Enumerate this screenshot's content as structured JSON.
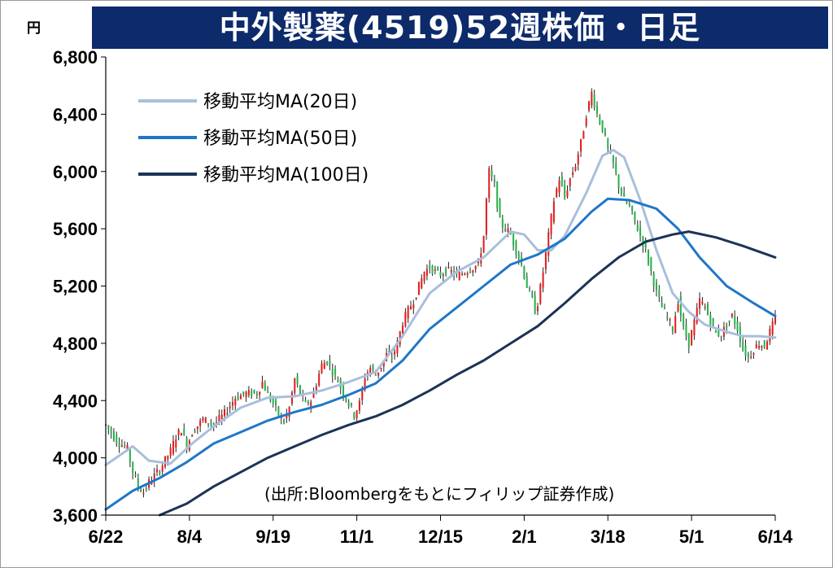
{
  "header": {
    "title": "中外製薬(4519)52週株価・日足",
    "unit": "円"
  },
  "source_note": "(出所:Bloombergをもとにフィリップ証券作成)",
  "colors": {
    "title_bg": "#0d2a6b",
    "up": "#e02020",
    "down": "#27b34a",
    "ma20": "#a9bfdc",
    "ma50": "#1f77c7",
    "ma100": "#1b3356"
  },
  "chart_data": {
    "type": "line",
    "title": "中外製薬(4519)52週株価・日足",
    "ylabel": "円",
    "ylim": [
      3600,
      6800
    ],
    "yticks": [
      "3,600",
      "4,000",
      "4,400",
      "4,800",
      "5,200",
      "5,600",
      "6,000",
      "6,400",
      "6,800"
    ],
    "ytick_values": [
      3600,
      4000,
      4400,
      4800,
      5200,
      5600,
      6000,
      6400,
      6800
    ],
    "xlim": [
      0,
      248
    ],
    "x_ticks": [
      {
        "label": "6/22",
        "x": 0
      },
      {
        "label": "8/4",
        "x": 31
      },
      {
        "label": "9/19",
        "x": 62
      },
      {
        "label": "11/1",
        "x": 93
      },
      {
        "label": "12/15",
        "x": 124
      },
      {
        "label": "2/1",
        "x": 155
      },
      {
        "label": "3/18",
        "x": 186
      },
      {
        "label": "5/1",
        "x": 217
      },
      {
        "label": "6/14",
        "x": 248
      }
    ],
    "legend": {
      "placement": "top-left",
      "entries": [
        {
          "label": "移動平均MA(20日)",
          "key": "ma20"
        },
        {
          "label": "移動平均MA(50日)",
          "key": "ma50"
        },
        {
          "label": "移動平均MA(100日)",
          "key": "ma100"
        }
      ]
    },
    "price_anchors": [
      [
        0,
        4230
      ],
      [
        4,
        4120
      ],
      [
        8,
        4060
      ],
      [
        10,
        3900
      ],
      [
        12,
        3800
      ],
      [
        14,
        3760
      ],
      [
        16,
        3830
      ],
      [
        20,
        3920
      ],
      [
        24,
        4050
      ],
      [
        26,
        4150
      ],
      [
        28,
        4200
      ],
      [
        30,
        4080
      ],
      [
        32,
        4180
      ],
      [
        36,
        4270
      ],
      [
        40,
        4230
      ],
      [
        44,
        4310
      ],
      [
        48,
        4420
      ],
      [
        52,
        4450
      ],
      [
        56,
        4450
      ],
      [
        58,
        4530
      ],
      [
        60,
        4440
      ],
      [
        62,
        4380
      ],
      [
        64,
        4300
      ],
      [
        66,
        4250
      ],
      [
        68,
        4350
      ],
      [
        70,
        4550
      ],
      [
        72,
        4450
      ],
      [
        74,
        4370
      ],
      [
        76,
        4400
      ],
      [
        78,
        4520
      ],
      [
        80,
        4650
      ],
      [
        82,
        4680
      ],
      [
        84,
        4600
      ],
      [
        86,
        4540
      ],
      [
        88,
        4450
      ],
      [
        90,
        4380
      ],
      [
        92,
        4300
      ],
      [
        94,
        4380
      ],
      [
        96,
        4570
      ],
      [
        98,
        4630
      ],
      [
        100,
        4580
      ],
      [
        102,
        4640
      ],
      [
        104,
        4720
      ],
      [
        106,
        4700
      ],
      [
        108,
        4800
      ],
      [
        110,
        4950
      ],
      [
        112,
        5030
      ],
      [
        114,
        5100
      ],
      [
        116,
        5200
      ],
      [
        118,
        5300
      ],
      [
        120,
        5330
      ],
      [
        122,
        5300
      ],
      [
        124,
        5280
      ],
      [
        126,
        5310
      ],
      [
        128,
        5300
      ],
      [
        130,
        5270
      ],
      [
        132,
        5290
      ],
      [
        134,
        5310
      ],
      [
        136,
        5330
      ],
      [
        138,
        5350
      ],
      [
        140,
        5550
      ],
      [
        141,
        5800
      ],
      [
        142,
        6000
      ],
      [
        144,
        5900
      ],
      [
        146,
        5650
      ],
      [
        148,
        5600
      ],
      [
        150,
        5560
      ],
      [
        152,
        5450
      ],
      [
        154,
        5350
      ],
      [
        156,
        5200
      ],
      [
        158,
        5100
      ],
      [
        159,
        5030
      ],
      [
        160,
        5080
      ],
      [
        162,
        5300
      ],
      [
        164,
        5550
      ],
      [
        166,
        5800
      ],
      [
        168,
        5950
      ],
      [
        170,
        5820
      ],
      [
        172,
        5950
      ],
      [
        174,
        6050
      ],
      [
        176,
        6200
      ],
      [
        178,
        6400
      ],
      [
        180,
        6550
      ],
      [
        182,
        6400
      ],
      [
        184,
        6300
      ],
      [
        186,
        6150
      ],
      [
        188,
        6050
      ],
      [
        190,
        5900
      ],
      [
        192,
        5800
      ],
      [
        194,
        5750
      ],
      [
        196,
        5650
      ],
      [
        198,
        5550
      ],
      [
        200,
        5450
      ],
      [
        202,
        5300
      ],
      [
        204,
        5150
      ],
      [
        206,
        5050
      ],
      [
        208,
        4980
      ],
      [
        210,
        4900
      ],
      [
        212,
        5100
      ],
      [
        214,
        4900
      ],
      [
        216,
        4800
      ],
      [
        218,
        4950
      ],
      [
        220,
        5100
      ],
      [
        222,
        5050
      ],
      [
        224,
        4950
      ],
      [
        226,
        4870
      ],
      [
        228,
        4860
      ],
      [
        230,
        4930
      ],
      [
        232,
        4990
      ],
      [
        234,
        4900
      ],
      [
        236,
        4760
      ],
      [
        238,
        4700
      ],
      [
        240,
        4760
      ],
      [
        242,
        4800
      ],
      [
        244,
        4780
      ],
      [
        246,
        4880
      ],
      [
        248,
        4970
      ]
    ],
    "series": [
      {
        "name": "移動平均MA(20日)",
        "key": "ma20",
        "points": [
          [
            0,
            3950
          ],
          [
            10,
            4080
          ],
          [
            16,
            3980
          ],
          [
            24,
            3960
          ],
          [
            32,
            4100
          ],
          [
            40,
            4220
          ],
          [
            50,
            4350
          ],
          [
            60,
            4420
          ],
          [
            70,
            4430
          ],
          [
            80,
            4470
          ],
          [
            90,
            4530
          ],
          [
            100,
            4600
          ],
          [
            110,
            4850
          ],
          [
            120,
            5150
          ],
          [
            130,
            5300
          ],
          [
            140,
            5400
          ],
          [
            150,
            5580
          ],
          [
            155,
            5560
          ],
          [
            160,
            5450
          ],
          [
            165,
            5450
          ],
          [
            170,
            5550
          ],
          [
            178,
            5850
          ],
          [
            184,
            6110
          ],
          [
            188,
            6150
          ],
          [
            192,
            6100
          ],
          [
            198,
            5800
          ],
          [
            204,
            5450
          ],
          [
            210,
            5150
          ],
          [
            216,
            5020
          ],
          [
            222,
            4930
          ],
          [
            230,
            4880
          ],
          [
            236,
            4850
          ],
          [
            242,
            4850
          ],
          [
            248,
            4840
          ]
        ]
      },
      {
        "name": "移動平均MA(50日)",
        "key": "ma50",
        "points": [
          [
            0,
            3640
          ],
          [
            10,
            3770
          ],
          [
            20,
            3860
          ],
          [
            30,
            3970
          ],
          [
            40,
            4100
          ],
          [
            50,
            4180
          ],
          [
            60,
            4260
          ],
          [
            70,
            4320
          ],
          [
            80,
            4370
          ],
          [
            90,
            4440
          ],
          [
            100,
            4520
          ],
          [
            110,
            4680
          ],
          [
            120,
            4900
          ],
          [
            130,
            5050
          ],
          [
            140,
            5200
          ],
          [
            150,
            5350
          ],
          [
            160,
            5420
          ],
          [
            170,
            5530
          ],
          [
            180,
            5720
          ],
          [
            186,
            5810
          ],
          [
            194,
            5800
          ],
          [
            204,
            5740
          ],
          [
            212,
            5600
          ],
          [
            220,
            5400
          ],
          [
            230,
            5200
          ],
          [
            240,
            5080
          ],
          [
            248,
            4990
          ]
        ]
      },
      {
        "name": "移動平均MA(100日)",
        "key": "ma100",
        "points": [
          [
            20,
            3600
          ],
          [
            30,
            3680
          ],
          [
            40,
            3800
          ],
          [
            50,
            3900
          ],
          [
            60,
            4000
          ],
          [
            70,
            4080
          ],
          [
            80,
            4160
          ],
          [
            90,
            4230
          ],
          [
            100,
            4290
          ],
          [
            110,
            4370
          ],
          [
            120,
            4470
          ],
          [
            130,
            4580
          ],
          [
            140,
            4680
          ],
          [
            150,
            4800
          ],
          [
            160,
            4920
          ],
          [
            170,
            5080
          ],
          [
            180,
            5250
          ],
          [
            190,
            5400
          ],
          [
            200,
            5510
          ],
          [
            210,
            5560
          ],
          [
            216,
            5580
          ],
          [
            226,
            5540
          ],
          [
            236,
            5480
          ],
          [
            248,
            5400
          ]
        ]
      }
    ]
  }
}
